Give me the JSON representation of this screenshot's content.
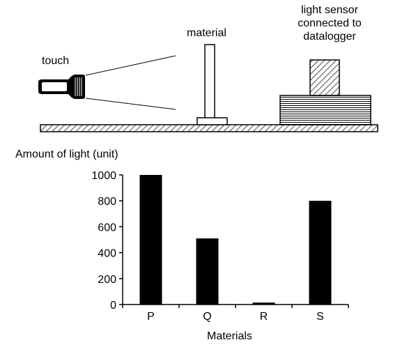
{
  "apparatus": {
    "torch_label": "touch",
    "material_label": "material",
    "sensor_label_lines": [
      "light sensor",
      "connected to",
      "datalogger"
    ]
  },
  "chart_data": {
    "type": "bar",
    "title": "",
    "ylabel": "Amount of light (unit)",
    "xlabel": "Materials",
    "categories": [
      "P",
      "Q",
      "R",
      "S"
    ],
    "values": [
      1000,
      510,
      15,
      800
    ],
    "ylim": [
      0,
      1000
    ],
    "yticks": [
      0,
      200,
      400,
      600,
      800,
      1000
    ],
    "bar_color": "#000000",
    "grid": false
  }
}
